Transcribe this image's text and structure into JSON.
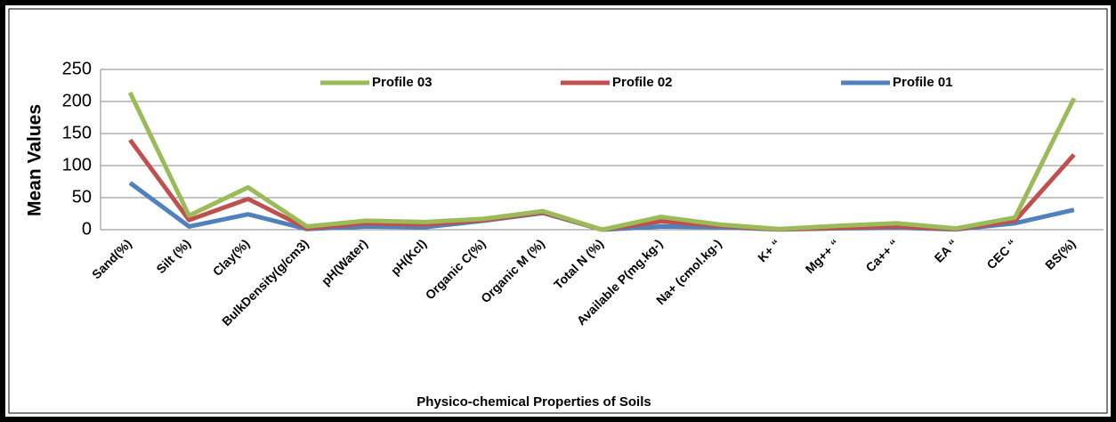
{
  "chart_data": {
    "type": "line",
    "x_label": "Physico-chemical Properties of Soils",
    "y_label": "Mean Values",
    "categories": [
      "Sand(%)",
      "Silt (%)",
      "Clay(%)",
      "BulkDensity(g/cm3)",
      "pH(Water)",
      "pH(Kcl)",
      "Organic C(%)",
      "Organic M (%)",
      "Total N (%)",
      "Available P(mg.kg-)",
      "Na+ (cmol.kg-)",
      "K+   “",
      "Mg++ “",
      "Ca++ “",
      "EA “",
      "CEC “",
      "BS(%)"
    ],
    "series": [
      {
        "name": "Profile 03",
        "color": "#9bbb59",
        "values": [
          214,
          22,
          66,
          5,
          14,
          12,
          17,
          29,
          0,
          20,
          8,
          1,
          6,
          10,
          2,
          19,
          205
        ]
      },
      {
        "name": "Profile 02",
        "color": "#c0504d",
        "values": [
          140,
          15,
          48,
          2,
          10,
          8,
          15,
          27,
          0,
          13,
          6,
          0.5,
          3,
          5,
          1,
          14,
          117
        ]
      },
      {
        "name": "Profile 01",
        "color": "#4f81bd",
        "values": [
          73,
          5,
          24,
          1,
          5,
          4,
          14,
          26,
          0,
          5,
          4,
          0.3,
          2,
          3,
          0.5,
          10,
          31
        ]
      }
    ],
    "ylim": [
      0,
      250
    ],
    "yticks": [
      0,
      50,
      100,
      150,
      200,
      250
    ],
    "grid": true,
    "legend": "top"
  }
}
